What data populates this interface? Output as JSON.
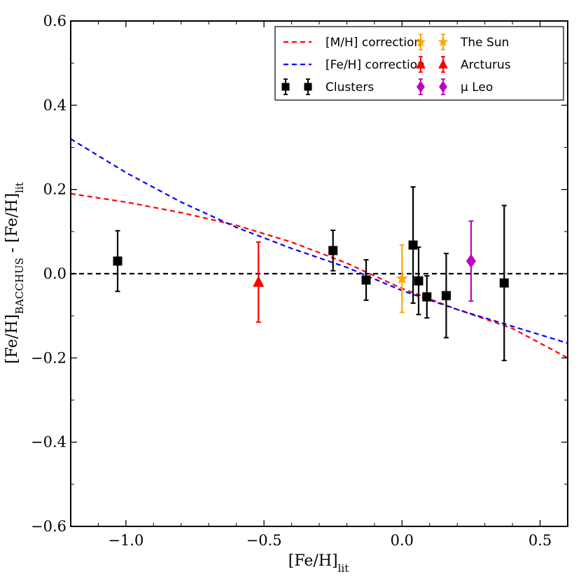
{
  "chart_data": {
    "type": "scatter",
    "title": "",
    "xlabel": "[Fe/H]",
    "xlabel_sub": "lit",
    "ylabel_parts": [
      "[Fe/H]",
      "BACCHUS",
      " - [Fe/H]",
      "lit"
    ],
    "xlim": [
      -1.2,
      0.6
    ],
    "ylim": [
      -0.6,
      0.6
    ],
    "x_ticks": [
      {
        "value": -1.0,
        "label": "−1.0"
      },
      {
        "value": -0.5,
        "label": "−0.5"
      },
      {
        "value": 0.0,
        "label": "0.0"
      },
      {
        "value": 0.5,
        "label": "0.5"
      }
    ],
    "y_ticks": [
      {
        "value": -0.6,
        "label": "−0.6"
      },
      {
        "value": -0.4,
        "label": "−0.4"
      },
      {
        "value": -0.2,
        "label": "−0.2"
      },
      {
        "value": 0.0,
        "label": "0.0"
      },
      {
        "value": 0.2,
        "label": "0.2"
      },
      {
        "value": 0.4,
        "label": "0.4"
      },
      {
        "value": 0.6,
        "label": "0.6"
      }
    ],
    "reference_line": {
      "y": 0.0,
      "style": "dashed",
      "color": "#000000"
    },
    "lines": [
      {
        "name": "[M/H] correction",
        "color": "#ff0000",
        "style": "dashed",
        "x": [
          -1.2,
          -1.0,
          -0.8,
          -0.6,
          -0.4,
          -0.2,
          0.0,
          0.2,
          0.4,
          0.6
        ],
        "y": [
          0.19,
          0.17,
          0.145,
          0.115,
          0.075,
          0.025,
          -0.035,
          -0.085,
          -0.13,
          -0.2
        ]
      },
      {
        "name": "[Fe/H] correction",
        "color": "#0000ff",
        "style": "dashed",
        "x": [
          -1.2,
          -1.0,
          -0.8,
          -0.6,
          -0.4,
          -0.2,
          0.0,
          0.2,
          0.4,
          0.6
        ],
        "y": [
          0.32,
          0.24,
          0.17,
          0.11,
          0.06,
          0.015,
          -0.04,
          -0.085,
          -0.125,
          -0.165
        ]
      }
    ],
    "series": [
      {
        "name": "Clusters",
        "marker": "square",
        "color": "#000000",
        "points": [
          {
            "x": -1.03,
            "y": 0.03,
            "err": 0.072
          },
          {
            "x": -0.25,
            "y": 0.055,
            "err": 0.048
          },
          {
            "x": -0.13,
            "y": -0.015,
            "err": 0.048
          },
          {
            "x": 0.04,
            "y": 0.068,
            "err": 0.138
          },
          {
            "x": 0.06,
            "y": -0.017,
            "err": 0.08
          },
          {
            "x": 0.09,
            "y": -0.055,
            "err": 0.05
          },
          {
            "x": 0.16,
            "y": -0.052,
            "err": 0.1
          },
          {
            "x": 0.37,
            "y": -0.022,
            "err": 0.184
          }
        ]
      },
      {
        "name": "The Sun",
        "marker": "star",
        "color": "#ffa500",
        "points": [
          {
            "x": 0.0,
            "y": -0.012,
            "err": 0.08
          }
        ]
      },
      {
        "name": "Arcturus",
        "marker": "triangle",
        "color": "#ff0000",
        "points": [
          {
            "x": -0.52,
            "y": -0.02,
            "err": 0.095
          }
        ]
      },
      {
        "name": "μ Leo",
        "marker": "diamond",
        "color": "#bf00bf",
        "points": [
          {
            "x": 0.25,
            "y": 0.03,
            "err": 0.095
          }
        ]
      }
    ],
    "legend": {
      "placement": "top-right",
      "entries": [
        {
          "label": "[M/H] correction",
          "kind": "line",
          "color": "#ff0000"
        },
        {
          "label": "[Fe/H] correction",
          "kind": "line",
          "color": "#0000ff"
        },
        {
          "label": "Clusters",
          "kind": "marker",
          "marker": "square",
          "color": "#000000"
        },
        {
          "label": "The Sun",
          "kind": "marker",
          "marker": "star",
          "color": "#ffa500"
        },
        {
          "label": "Arcturus",
          "kind": "marker",
          "marker": "triangle",
          "color": "#ff0000"
        },
        {
          "label": "μ Leo",
          "kind": "marker",
          "marker": "diamond",
          "color": "#bf00bf"
        }
      ]
    }
  }
}
